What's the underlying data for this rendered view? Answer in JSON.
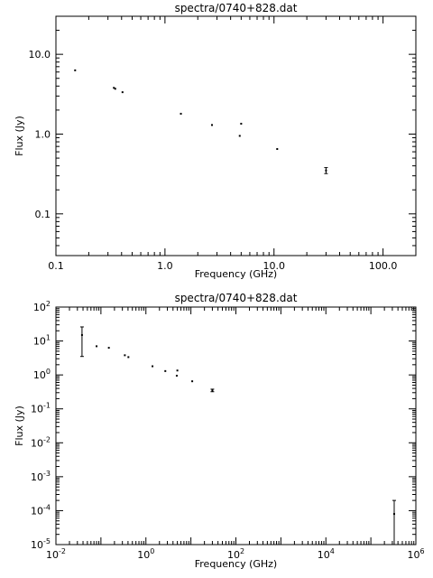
{
  "chart_data": [
    {
      "type": "scatter",
      "title": "spectra/0740+828.dat",
      "xlabel": "Frequency (GHz)",
      "ylabel": "Flux (Jy)",
      "xscale": "log",
      "yscale": "log",
      "xlim": [
        0.1,
        200
      ],
      "ylim": [
        0.03,
        30
      ],
      "xticks": [
        {
          "v": 0.1,
          "label": "0.1"
        },
        {
          "v": 1,
          "label": "1.0"
        },
        {
          "v": 10,
          "label": "10.0"
        },
        {
          "v": 100,
          "label": "100.0"
        }
      ],
      "yticks": [
        {
          "v": 0.1,
          "label": "0.1"
        },
        {
          "v": 1,
          "label": "1.0"
        },
        {
          "v": 10,
          "label": "10.0"
        }
      ],
      "points": [
        {
          "x": 0.15,
          "y": 6.3
        },
        {
          "x": 0.34,
          "y": 3.8
        },
        {
          "x": 0.35,
          "y": 3.7
        },
        {
          "x": 0.408,
          "y": 3.35
        },
        {
          "x": 1.4,
          "y": 1.8
        },
        {
          "x": 2.7,
          "y": 1.3
        },
        {
          "x": 4.85,
          "y": 0.95
        },
        {
          "x": 5.0,
          "y": 1.35
        },
        {
          "x": 10.7,
          "y": 0.65
        },
        {
          "x": 30,
          "y": 0.35,
          "ylo": 0.32,
          "yhi": 0.38
        }
      ]
    },
    {
      "type": "scatter",
      "title": "spectra/0740+828.dat",
      "xlabel": "Frequency (GHz)",
      "ylabel": "Flux (Jy)",
      "xscale": "log",
      "yscale": "log",
      "xlim": [
        0.01,
        1000000
      ],
      "ylim": [
        1e-05,
        100
      ],
      "xticks": [
        {
          "v": 0.01,
          "base": "10",
          "exp": "-2"
        },
        {
          "v": 1,
          "base": "10",
          "exp": "0"
        },
        {
          "v": 100,
          "base": "10",
          "exp": "2"
        },
        {
          "v": 10000,
          "base": "10",
          "exp": "4"
        },
        {
          "v": 1000000,
          "base": "10",
          "exp": "6"
        }
      ],
      "yticks": [
        {
          "v": 1e-05,
          "base": "10",
          "exp": "-5"
        },
        {
          "v": 0.0001,
          "base": "10",
          "exp": "-4"
        },
        {
          "v": 0.001,
          "base": "10",
          "exp": "-3"
        },
        {
          "v": 0.01,
          "base": "10",
          "exp": "-2"
        },
        {
          "v": 0.1,
          "base": "10",
          "exp": "-1"
        },
        {
          "v": 1,
          "base": "10",
          "exp": "0"
        },
        {
          "v": 10,
          "base": "10",
          "exp": "1"
        },
        {
          "v": 100,
          "base": "10",
          "exp": "2"
        }
      ],
      "points": [
        {
          "x": 0.038,
          "y": 15,
          "ylo": 3.5,
          "yhi": 26
        },
        {
          "x": 0.08,
          "y": 7
        },
        {
          "x": 0.15,
          "y": 6.3
        },
        {
          "x": 0.34,
          "y": 3.8
        },
        {
          "x": 0.408,
          "y": 3.35
        },
        {
          "x": 1.4,
          "y": 1.8
        },
        {
          "x": 2.7,
          "y": 1.3
        },
        {
          "x": 4.85,
          "y": 0.95
        },
        {
          "x": 5.0,
          "y": 1.35
        },
        {
          "x": 10.7,
          "y": 0.65
        },
        {
          "x": 30,
          "y": 0.35,
          "ylo": 0.32,
          "yhi": 0.38
        },
        {
          "x": 330000,
          "y": 8e-05,
          "ylo": 1e-05,
          "yhi": 0.0002
        }
      ]
    }
  ]
}
